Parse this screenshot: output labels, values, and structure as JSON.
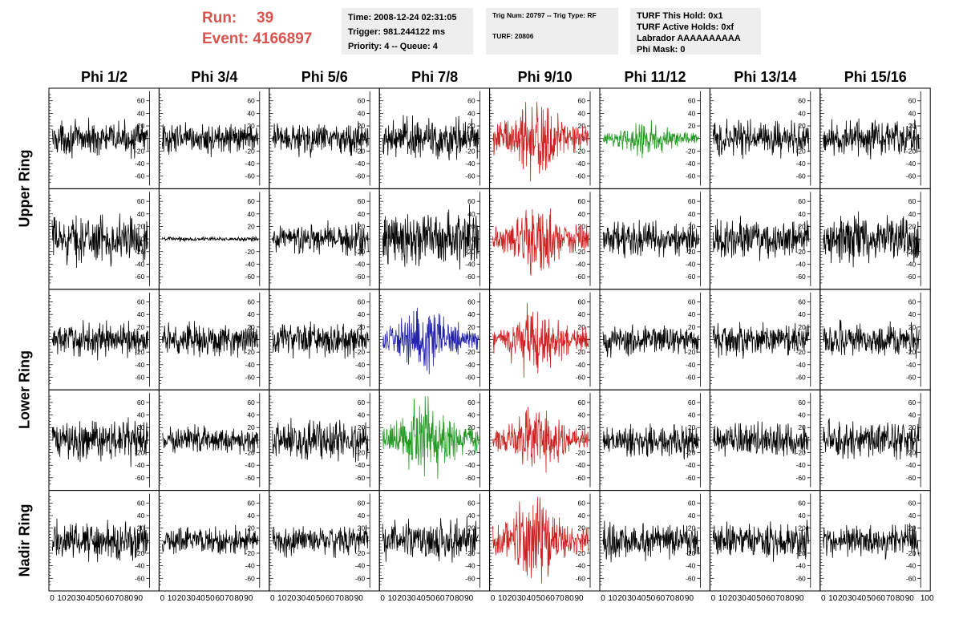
{
  "header": {
    "run_label": "Run:",
    "run_value": "39",
    "event_label": "Event:",
    "event_value": "4166897",
    "time": "Time: 2008-12-24 02:31:05",
    "trigger": "Trigger: 981.244122 ms",
    "priority": "Priority: 4 -- Queue: 4",
    "trig_num": "Trig Num: 20797 -- Trig Type: RF",
    "turf": "TURF: 20806",
    "turf_this_hold": "TURF This Hold: 0x1",
    "turf_active_holds": "TURF Active Holds: 0xf",
    "labrador": "Labrador AAAAAAAAAA",
    "phi_mask": "Phi Mask: 0"
  },
  "chart_data": {
    "type": "line",
    "columns": [
      "Phi 1/2",
      "Phi 3/4",
      "Phi 5/6",
      "Phi 7/8",
      "Phi 9/10",
      "Phi 11/12",
      "Phi 13/14",
      "Phi 15/16"
    ],
    "rows": [
      "Upper Ring",
      "Upper Ring",
      "Lower Ring",
      "Lower Ring",
      "Nadir Ring"
    ],
    "row_labels": [
      {
        "text": "Upper Ring",
        "spans_rows": [
          0,
          1
        ]
      },
      {
        "text": "Lower Ring",
        "spans_rows": [
          2,
          3
        ]
      },
      {
        "text": "Nadir Ring",
        "spans_rows": [
          4,
          4
        ]
      }
    ],
    "xlim": [
      0,
      100
    ],
    "x_ticks": [
      0,
      10,
      20,
      30,
      40,
      50,
      60,
      70,
      80,
      90
    ],
    "x_last_tick_label": "100",
    "ylim": [
      -75,
      75
    ],
    "y_ticks": [
      -60,
      -40,
      -20,
      0,
      20,
      40,
      60
    ],
    "colors": {
      "normal": "#000000",
      "red": "#cc2222",
      "green": "#229922",
      "blue": "#2222aa"
    },
    "panels": [
      [
        {
          "color": "normal",
          "amp": 12
        },
        {
          "color": "normal",
          "amp": 11
        },
        {
          "color": "normal",
          "amp": 12
        },
        {
          "color": "normal",
          "amp": 16
        },
        {
          "color": "red",
          "amp": 24,
          "burst": true
        },
        {
          "color": "green",
          "amp": 10,
          "burst": true
        },
        {
          "color": "normal",
          "amp": 13
        },
        {
          "color": "normal",
          "amp": 13
        }
      ],
      [
        {
          "color": "normal",
          "amp": 17
        },
        {
          "color": "normal",
          "amp": 1.5
        },
        {
          "color": "normal",
          "amp": 12
        },
        {
          "color": "normal",
          "amp": 20
        },
        {
          "color": "red",
          "amp": 22,
          "burst": true
        },
        {
          "color": "normal",
          "amp": 12
        },
        {
          "color": "normal",
          "amp": 14
        },
        {
          "color": "normal",
          "amp": 17
        }
      ],
      [
        {
          "color": "normal",
          "amp": 12
        },
        {
          "color": "normal",
          "amp": 12
        },
        {
          "color": "normal",
          "amp": 12
        },
        {
          "color": "blue",
          "amp": 20,
          "burst": true
        },
        {
          "color": "red",
          "amp": 20,
          "burst": true
        },
        {
          "color": "normal",
          "amp": 11
        },
        {
          "color": "normal",
          "amp": 12
        },
        {
          "color": "normal",
          "amp": 12
        }
      ],
      [
        {
          "color": "normal",
          "amp": 15
        },
        {
          "color": "normal",
          "amp": 10
        },
        {
          "color": "normal",
          "amp": 14
        },
        {
          "color": "green",
          "amp": 24,
          "burst": true
        },
        {
          "color": "red",
          "amp": 20,
          "burst": true
        },
        {
          "color": "normal",
          "amp": 12
        },
        {
          "color": "normal",
          "amp": 12
        },
        {
          "color": "normal",
          "amp": 14
        }
      ],
      [
        {
          "color": "normal",
          "amp": 14
        },
        {
          "color": "normal",
          "amp": 10
        },
        {
          "color": "normal",
          "amp": 11
        },
        {
          "color": "normal",
          "amp": 15
        },
        {
          "color": "red",
          "amp": 26,
          "burst": true
        },
        {
          "color": "normal",
          "amp": 14
        },
        {
          "color": "normal",
          "amp": 13
        },
        {
          "color": "normal",
          "amp": 12
        }
      ]
    ]
  }
}
